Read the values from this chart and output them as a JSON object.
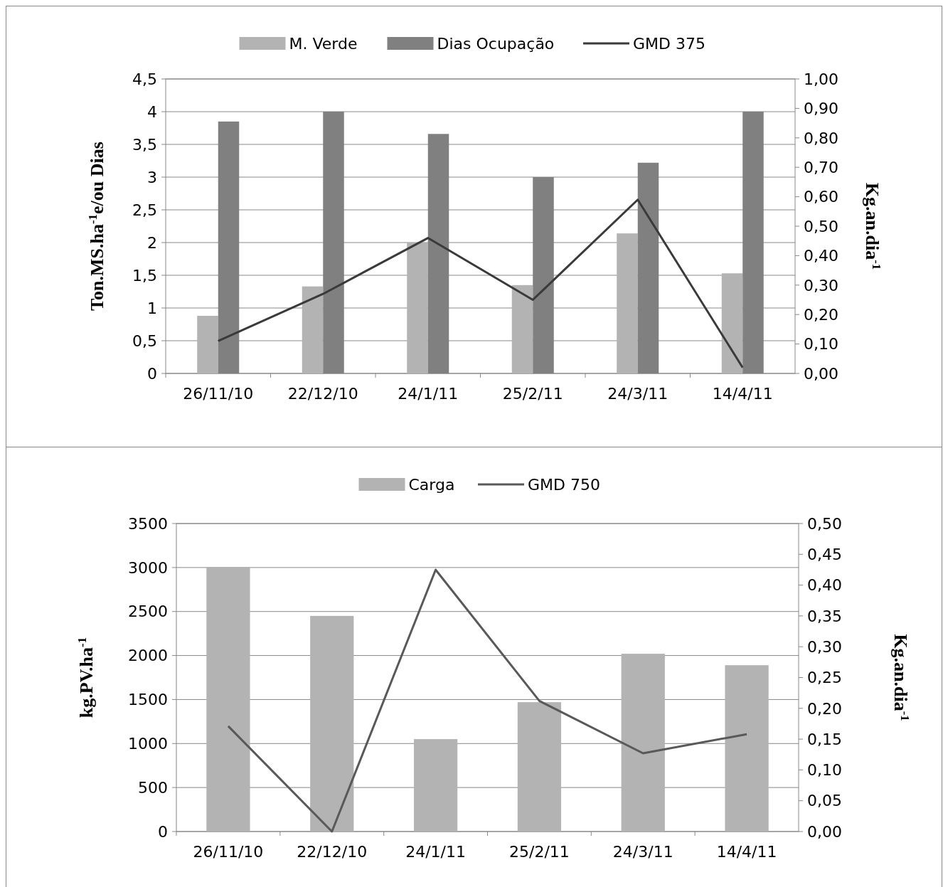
{
  "chart_data": [
    {
      "type": "bar",
      "categories": [
        "26/11/10",
        "22/12/10",
        "24/1/11",
        "25/2/11",
        "24/3/11",
        "14/4/11"
      ],
      "series": [
        {
          "name": "M. Verde",
          "color": "#b3b3b3",
          "values": [
            0.88,
            1.33,
            2.0,
            1.35,
            2.14,
            1.53
          ]
        },
        {
          "name": "Dias Ocupação",
          "color": "#808080",
          "values": [
            3.85,
            4.0,
            3.66,
            3.0,
            3.22,
            4.0
          ]
        },
        {
          "name": "GMD 375",
          "type": "line",
          "axis": "y2",
          "color": "#3a3a3a",
          "values": [
            0.11,
            0.27,
            0.46,
            0.25,
            0.59,
            0.02
          ]
        }
      ],
      "ylabel": "Ton.MS.ha$^{-1}$e/ou Dias",
      "y2label": "Kg.an.dia$^{-1}$",
      "ylim": [
        0,
        4.5
      ],
      "yticks": [
        0,
        {
          "value": 0.5,
          "label": "0,5"
        },
        1,
        {
          "value": 1.5,
          "label": "1,5"
        },
        2,
        {
          "value": 2.5,
          "label": "2,5"
        },
        3,
        {
          "value": 3.5,
          "label": "3,5"
        },
        4,
        {
          "value": 4.5,
          "label": "4,5"
        }
      ],
      "y2lim": [
        0,
        1
      ],
      "y2ticks": [
        {
          "value": 0,
          "label": "0,00"
        },
        {
          "value": 0.1,
          "label": "0,10"
        },
        {
          "value": 0.2,
          "label": "0,20"
        },
        {
          "value": 0.3,
          "label": "0,30"
        },
        {
          "value": 0.4,
          "label": "0,40"
        },
        {
          "value": 0.5,
          "label": "0,50"
        },
        {
          "value": 0.6,
          "label": "0,60"
        },
        {
          "value": 0.7,
          "label": "0,70"
        },
        {
          "value": 0.8,
          "label": "0,80"
        },
        {
          "value": 0.9,
          "label": "0,90"
        },
        {
          "value": 1,
          "label": "1,00"
        }
      ],
      "grid": "y",
      "legend": "top",
      "marker": "none"
    },
    {
      "type": "bar",
      "categories": [
        "26/11/10",
        "22/12/10",
        "24/1/11",
        "25/2/11",
        "24/3/11",
        "14/4/11"
      ],
      "series": [
        {
          "name": "Carga",
          "color": "#b3b3b3",
          "values": [
            3000,
            2450,
            1050,
            1470,
            2020,
            1890
          ]
        },
        {
          "name": "GMD 750",
          "type": "line",
          "axis": "y2",
          "color": "#595959",
          "values": [
            0.171,
            0.0,
            0.425,
            0.212,
            0.127,
            0.158
          ]
        }
      ],
      "ylabel": "kg.PV.ha$^{-1}$",
      "y2label": "Kg.an.dia$^{-1}$",
      "ylim": [
        0,
        3500
      ],
      "yticks": [
        0,
        500,
        1000,
        1500,
        2000,
        2500,
        3000,
        3500
      ],
      "y2lim": [
        0,
        0.5
      ],
      "y2ticks": [
        {
          "value": 0,
          "label": "0,00"
        },
        {
          "value": 0.05,
          "label": "0,05"
        },
        {
          "value": 0.1,
          "label": "0,10"
        },
        {
          "value": 0.15,
          "label": "0,15"
        },
        {
          "value": 0.2,
          "label": "0,20"
        },
        {
          "value": 0.25,
          "label": "0,25"
        },
        {
          "value": 0.3,
          "label": "0,30"
        },
        {
          "value": 0.35,
          "label": "0,35"
        },
        {
          "value": 0.4,
          "label": "0,40"
        },
        {
          "value": 0.45,
          "label": "0,45"
        },
        {
          "value": 0.5,
          "label": "0,50"
        }
      ],
      "grid": "y",
      "legend": "top",
      "marker": "none"
    }
  ]
}
